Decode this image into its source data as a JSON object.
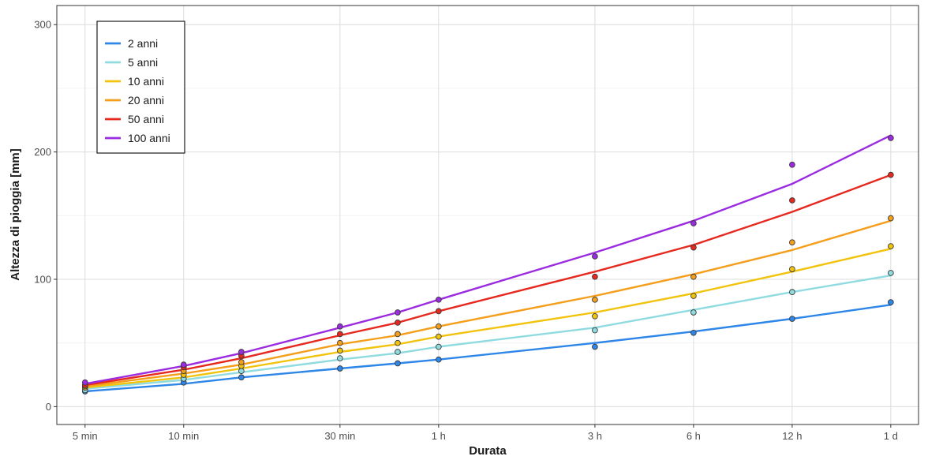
{
  "chart_data": {
    "type": "scatter",
    "title": "",
    "xlabel": "Durata",
    "ylabel": "Altezza di pioggia [mm]",
    "x_scale": "log",
    "x_unit": "minutes",
    "x_ticks": [
      {
        "value": 5,
        "label": "5 min"
      },
      {
        "value": 10,
        "label": "10 min"
      },
      {
        "value": 30,
        "label": "30 min"
      },
      {
        "value": 60,
        "label": "1 h"
      },
      {
        "value": 180,
        "label": "3 h"
      },
      {
        "value": 360,
        "label": "6 h"
      },
      {
        "value": 720,
        "label": "12 h"
      },
      {
        "value": 1440,
        "label": "1 d"
      }
    ],
    "xlim": [
      4.1,
      1750
    ],
    "ylim": [
      -14,
      315
    ],
    "y_ticks": [
      0,
      100,
      200,
      300
    ],
    "grid": true,
    "legend_position": "top-left",
    "point_x": [
      5,
      10,
      15,
      30,
      45,
      60,
      180,
      360,
      720,
      1440
    ],
    "series": [
      {
        "name": "2 anni",
        "color": "#2e86e8",
        "points": [
          12,
          19,
          23,
          30,
          34,
          37,
          47,
          58,
          69,
          82
        ],
        "fit": [
          12,
          18,
          23,
          30,
          34,
          37,
          50,
          59,
          69,
          80
        ]
      },
      {
        "name": "5 anni",
        "color": "#8fdbe0",
        "points": [
          13,
          22,
          28,
          38,
          43,
          47,
          60,
          74,
          90,
          105
        ],
        "fit": [
          14,
          21,
          27,
          37,
          42,
          47,
          62,
          76,
          90,
          103
        ]
      },
      {
        "name": "10 anni",
        "color": "#f2c30c",
        "points": [
          15,
          25,
          32,
          44,
          50,
          55,
          71,
          87,
          108,
          126
        ],
        "fit": [
          15,
          23,
          30,
          43,
          49,
          55,
          74,
          89,
          106,
          124
        ]
      },
      {
        "name": "20 anni",
        "color": "#f59e1b",
        "points": [
          16,
          28,
          35,
          50,
          57,
          63,
          84,
          102,
          129,
          148
        ],
        "fit": [
          16,
          26,
          33,
          49,
          56,
          63,
          87,
          104,
          123,
          146
        ]
      },
      {
        "name": "50 anni",
        "color": "#e6281e",
        "points": [
          17,
          31,
          40,
          57,
          66,
          75,
          102,
          125,
          162,
          182
        ],
        "fit": [
          17,
          29,
          38,
          56,
          66,
          75,
          106,
          127,
          153,
          182
        ]
      },
      {
        "name": "100 anni",
        "color": "#9b2be0",
        "points": [
          19,
          33,
          43,
          63,
          74,
          84,
          118,
          144,
          190,
          211
        ],
        "fit": [
          18,
          32,
          42,
          62,
          74,
          84,
          121,
          146,
          175,
          213
        ]
      }
    ]
  }
}
